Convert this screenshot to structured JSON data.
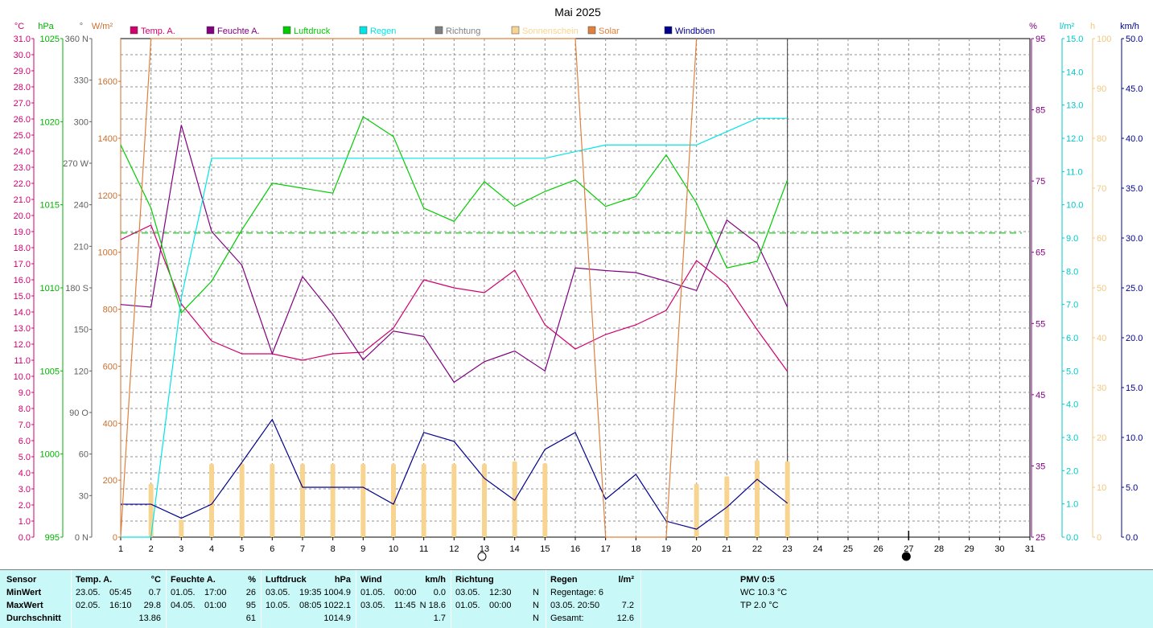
{
  "chart_data": {
    "type": "line",
    "title": "Mai 2025",
    "x_ticks": [
      1,
      2,
      3,
      4,
      5,
      6,
      7,
      8,
      9,
      10,
      11,
      12,
      13,
      14,
      15,
      16,
      17,
      18,
      19,
      20,
      21,
      22,
      23,
      24,
      25,
      26,
      27,
      28,
      29,
      30,
      31
    ],
    "axes": {
      "temp": {
        "unit": "°C",
        "min": 0,
        "max": 31,
        "ticks": [
          "0.0",
          "1.0",
          "2.0",
          "3.0",
          "4.0",
          "5.0",
          "6.0",
          "7.0",
          "8.0",
          "9.0",
          "10.0",
          "11.0",
          "12.0",
          "13.0",
          "14.0",
          "15.0",
          "16.0",
          "17.0",
          "18.0",
          "19.0",
          "20.0",
          "21.0",
          "22.0",
          "23.0",
          "24.0",
          "25.0",
          "26.0",
          "27.0",
          "28.0",
          "29.0",
          "30.0",
          "31.0"
        ]
      },
      "pressure": {
        "unit": "hPa",
        "min": 995,
        "max": 1025,
        "ticks": [
          "995",
          "1000",
          "1005",
          "1010",
          "1015",
          "1020",
          "1025"
        ]
      },
      "direction": {
        "unit": "°",
        "min": 0,
        "max": 360,
        "ticks": [
          "0 N",
          "30",
          "60",
          "90 O",
          "120",
          "150",
          "180 S",
          "210",
          "240",
          "270 W",
          "300",
          "330",
          "360 N"
        ]
      },
      "solar": {
        "unit": "W/m²",
        "min": 0,
        "max": 1750,
        "ticks": [
          "0",
          "200",
          "400",
          "600",
          "800",
          "1000",
          "1200",
          "1400",
          "1600"
        ]
      },
      "humidity": {
        "unit": "%",
        "min": 25,
        "max": 100,
        "ticks": [
          "25",
          "35",
          "45",
          "55",
          "65",
          "75",
          "85",
          "95"
        ]
      },
      "rain": {
        "unit": "l/m²",
        "min": 0,
        "max": 15,
        "ticks": [
          "0.0",
          "1.0",
          "2.0",
          "3.0",
          "4.0",
          "5.0",
          "6.0",
          "7.0",
          "8.0",
          "9.0",
          "10.0",
          "11.0",
          "12.0",
          "13.0",
          "14.0",
          "15.0"
        ]
      },
      "sunshine": {
        "unit": "h",
        "min": 0,
        "max": 100,
        "ticks": [
          "0",
          "10",
          "20",
          "30",
          "40",
          "50",
          "60",
          "70",
          "80",
          "90",
          "100"
        ]
      },
      "wind": {
        "unit": "km/h",
        "min": 0,
        "max": 50,
        "ticks": [
          "0.0",
          "5.0",
          "10.0",
          "15.0",
          "20.0",
          "25.0",
          "30.0",
          "35.0",
          "40.0",
          "45.0",
          "50.0"
        ]
      }
    },
    "legend": [
      {
        "name": "Temp. A.",
        "color": "#d0006e"
      },
      {
        "name": "Feuchte A.",
        "color": "#800080"
      },
      {
        "name": "Luftdruck",
        "color": "#00cc00"
      },
      {
        "name": "Regen",
        "color": "#00e5e5"
      },
      {
        "name": "Richtung",
        "color": "#808080"
      },
      {
        "name": "Sonnenschein",
        "color": "#f7d590"
      },
      {
        "name": "Solar",
        "color": "#e0803c"
      },
      {
        "name": "Windböen",
        "color": "#00008b"
      }
    ],
    "series": [
      {
        "name": "Temp. A.",
        "axis": "temp",
        "color": "#d0006e",
        "x": [
          1,
          2,
          3,
          4,
          5,
          6,
          7,
          8,
          9,
          10,
          11,
          12,
          13,
          14,
          15,
          16,
          17,
          18,
          19,
          20,
          21,
          22,
          23
        ],
        "values": [
          18.5,
          19.4,
          14.5,
          12.2,
          11.4,
          11.4,
          11.0,
          11.4,
          11.5,
          13.0,
          16.0,
          15.5,
          15.2,
          16.6,
          13.2,
          11.7,
          12.6,
          13.2,
          14.1,
          17.2,
          15.7,
          12.9,
          10.3
        ]
      },
      {
        "name": "Feuchte A.",
        "axis": "humidity",
        "color": "#800080",
        "x": [
          1,
          2,
          3,
          4,
          5,
          6,
          7,
          8,
          9,
          10,
          11,
          12,
          13,
          14,
          15,
          16,
          17,
          18,
          19,
          20,
          21,
          22,
          23
        ],
        "values": [
          60.0,
          59.6,
          87.0,
          71.0,
          65.9,
          52.6,
          64.2,
          58.5,
          51.7,
          56.0,
          55.2,
          48.3,
          51.4,
          53.0,
          50.0,
          65.5,
          65.1,
          64.8,
          63.5,
          62.1,
          72.7,
          69.2,
          59.6
        ]
      },
      {
        "name": "Luftdruck",
        "axis": "pressure",
        "color": "#00cc00",
        "x": [
          1,
          2,
          3,
          4,
          5,
          6,
          7,
          8,
          9,
          10,
          11,
          12,
          13,
          14,
          15,
          16,
          17,
          18,
          19,
          20,
          21,
          22,
          23
        ],
        "values": [
          1018.6,
          1014.8,
          1008.5,
          1010.4,
          1013.5,
          1016.3,
          1016.0,
          1015.7,
          1020.3,
          1019.1,
          1014.8,
          1014.0,
          1016.4,
          1014.9,
          1015.8,
          1016.5,
          1014.9,
          1015.5,
          1018.0,
          1015.1,
          1011.2,
          1011.6,
          1016.5
        ]
      },
      {
        "name": "Regen",
        "axis": "rain",
        "color": "#00e5e5",
        "x": [
          1,
          2,
          3,
          4,
          5,
          6,
          7,
          8,
          9,
          10,
          11,
          12,
          13,
          14,
          15,
          16,
          17,
          18,
          19,
          20,
          21,
          22,
          23
        ],
        "values": [
          0.0,
          0.0,
          7.2,
          11.4,
          11.4,
          11.4,
          11.4,
          11.4,
          11.4,
          11.4,
          11.4,
          11.4,
          11.4,
          11.4,
          11.4,
          11.6,
          11.8,
          11.8,
          11.8,
          11.8,
          12.2,
          12.6,
          12.6
        ]
      },
      {
        "name": "Windböen",
        "axis": "wind",
        "color": "#00008b",
        "x": [
          1,
          2,
          3,
          4,
          5,
          6,
          7,
          8,
          9,
          10,
          11,
          12,
          13,
          14,
          15,
          16,
          17,
          18,
          19,
          20,
          21,
          22,
          23
        ],
        "values": [
          3.3,
          3.3,
          1.9,
          3.3,
          7.5,
          11.8,
          5.0,
          5.0,
          5.0,
          3.3,
          10.5,
          9.6,
          5.9,
          3.7,
          8.8,
          10.5,
          3.8,
          6.3,
          1.6,
          0.8,
          3.0,
          5.8,
          3.4
        ]
      },
      {
        "name": "Solar",
        "axis": "solar",
        "color": "#e0803c",
        "x": [
          1,
          2,
          16,
          17,
          19,
          20
        ],
        "values": [
          0,
          1750,
          1750,
          0,
          0,
          1750
        ]
      },
      {
        "name": "Sonnenschein",
        "axis": "sunshine",
        "type": "bar",
        "color": "#f7d590",
        "x": [
          2,
          3,
          4,
          5,
          6,
          7,
          8,
          9,
          10,
          11,
          12,
          13,
          14,
          15,
          20,
          21,
          22,
          23
        ],
        "values": [
          10.7,
          3.5,
          14.7,
          14.7,
          14.7,
          14.7,
          14.7,
          14.7,
          14.7,
          14.7,
          14.7,
          14.7,
          15.2,
          14.8,
          10.7,
          12.2,
          15.4,
          15.2
        ]
      }
    ],
    "reference_lines": [
      {
        "axis": "pressure",
        "value": 1013.3,
        "color": "#00cc00",
        "style": "dashed"
      }
    ],
    "moon_phases": [
      {
        "x": 13,
        "phase": "full"
      },
      {
        "x": 27,
        "phase": "new"
      }
    ],
    "grid": true,
    "legend_placement": "top"
  },
  "summary": {
    "sensor": {
      "header": "Sensor",
      "rows": [
        "MinWert",
        "MaxWert",
        "Durchschnitt"
      ]
    },
    "temp": {
      "header": "Temp. A.",
      "unit": "°C",
      "rows": [
        {
          "date": "23.05.",
          "time": "05:45",
          "value": "0.7"
        },
        {
          "date": "02.05.",
          "time": "16:10",
          "value": "29.8"
        },
        {
          "date": "",
          "time": "",
          "value": "13.86"
        }
      ]
    },
    "humidity": {
      "header": "Feuchte A.",
      "unit": "%",
      "rows": [
        {
          "date": "01.05.",
          "time": "17:00",
          "value": "26"
        },
        {
          "date": "04.05.",
          "time": "01:00",
          "value": "95"
        },
        {
          "date": "",
          "time": "",
          "value": "61"
        }
      ]
    },
    "pressure": {
      "header": "Luftdruck",
      "unit": "hPa",
      "rows": [
        {
          "date": "03.05.",
          "time": "19:35",
          "value": "1004.9"
        },
        {
          "date": "10.05.",
          "time": "08:05",
          "value": "1022.1"
        },
        {
          "date": "",
          "time": "",
          "value": "1014.9"
        }
      ]
    },
    "wind": {
      "header": "Wind",
      "unit": "km/h",
      "rows": [
        {
          "date": "01.05.",
          "time": "00:00",
          "value": "0.0"
        },
        {
          "date": "03.05.",
          "time": "11:45",
          "value": "N 18.6"
        },
        {
          "date": "",
          "time": "",
          "value": "1.7"
        }
      ]
    },
    "direction": {
      "header": "Richtung",
      "rows": [
        {
          "date": "03.05.",
          "time": "12:30",
          "value": "N"
        },
        {
          "date": "01.05.",
          "time": "00:00",
          "value": "N"
        },
        {
          "date": "",
          "time": "",
          "value": "N"
        }
      ]
    },
    "rain": {
      "header": "Regen",
      "unit": "l/m²",
      "rows": [
        {
          "label": "Regentage: 6",
          "value": ""
        },
        {
          "label": "03.05.   20:50",
          "value": "7.2"
        },
        {
          "label": "Gesamt:",
          "value": "12.6"
        }
      ]
    },
    "pmv": {
      "header": "PMV 0:5",
      "rows": [
        "WC 10.3 °C",
        "TP 2.0 °C"
      ]
    }
  }
}
